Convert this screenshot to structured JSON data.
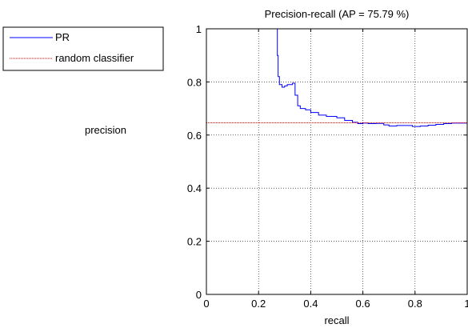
{
  "chart_data": {
    "type": "line",
    "title": "Precision-recall (AP = 75.79 %)",
    "xlabel": "recall",
    "ylabel": "precision",
    "xlim": [
      0,
      1
    ],
    "ylim": [
      0,
      1
    ],
    "grid": true,
    "legend_position": "outside-top-left",
    "x_ticks": [
      "0",
      "0.2",
      "0.4",
      "0.6",
      "0.8",
      "1"
    ],
    "y_ticks": [
      "0",
      "0.2",
      "0.4",
      "0.6",
      "0.8",
      "1"
    ],
    "series": [
      {
        "name": "PR",
        "color": "#0000ff",
        "style": "solid",
        "points": [
          [
            0,
            1.0
          ],
          [
            0.27,
            1.0
          ],
          [
            0.272,
            0.9
          ],
          [
            0.275,
            0.82
          ],
          [
            0.28,
            0.79
          ],
          [
            0.29,
            0.78
          ],
          [
            0.3,
            0.785
          ],
          [
            0.31,
            0.79
          ],
          [
            0.33,
            0.795
          ],
          [
            0.34,
            0.75
          ],
          [
            0.35,
            0.71
          ],
          [
            0.36,
            0.7
          ],
          [
            0.38,
            0.695
          ],
          [
            0.4,
            0.685
          ],
          [
            0.43,
            0.675
          ],
          [
            0.46,
            0.67
          ],
          [
            0.5,
            0.665
          ],
          [
            0.53,
            0.655
          ],
          [
            0.56,
            0.648
          ],
          [
            0.58,
            0.643
          ],
          [
            0.6,
            0.645
          ],
          [
            0.62,
            0.643
          ],
          [
            0.65,
            0.644
          ],
          [
            0.68,
            0.638
          ],
          [
            0.7,
            0.634
          ],
          [
            0.73,
            0.636
          ],
          [
            0.76,
            0.636
          ],
          [
            0.79,
            0.632
          ],
          [
            0.82,
            0.634
          ],
          [
            0.85,
            0.637
          ],
          [
            0.88,
            0.64
          ],
          [
            0.91,
            0.643
          ],
          [
            0.94,
            0.645
          ],
          [
            0.97,
            0.645
          ],
          [
            1.0,
            0.646
          ]
        ]
      },
      {
        "name": "random classifier",
        "color": "#ff0000",
        "style": "dotted",
        "points": [
          [
            0,
            0.646
          ],
          [
            1,
            0.646
          ]
        ]
      }
    ]
  }
}
